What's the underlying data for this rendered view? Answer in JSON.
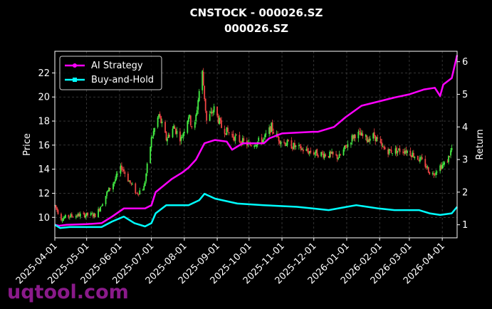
{
  "title": "CNSTOCK - 000026.SZ",
  "subtitle": "000026.SZ",
  "watermark": "uqtool.com",
  "chart_data": {
    "type": "line",
    "xlabel": "",
    "ylabel_left": "Price",
    "ylabel_right": "Return",
    "x_range": [
      "2025-04-01",
      "2026-04-15"
    ],
    "y_left_range": [
      8.3,
      23.8
    ],
    "y_right_range": [
      0.6,
      6.32
    ],
    "x_ticks": [
      "2025-04-01",
      "2025-05-01",
      "2025-06-01",
      "2025-07-01",
      "2025-08-01",
      "2025-09-01",
      "2025-10-01",
      "2025-11-01",
      "2025-12-01",
      "2026-01-01",
      "2026-02-01",
      "2026-03-01",
      "2026-04-01"
    ],
    "y_left_ticks": [
      "10",
      "12",
      "14",
      "16",
      "18",
      "20",
      "22"
    ],
    "y_right_ticks": [
      "1",
      "2",
      "3",
      "4",
      "5",
      "6"
    ],
    "grid": true,
    "legend_position": "top-left",
    "candle_colors": {
      "up": "#44ee44",
      "down": "#ee4444"
    },
    "price_path": [
      [
        "2025-04-01",
        11.0
      ],
      [
        "2025-04-07",
        9.9
      ],
      [
        "2025-04-15",
        10.1
      ],
      [
        "2025-04-25",
        10.2
      ],
      [
        "2025-05-10",
        10.2
      ],
      [
        "2025-05-20",
        12.0
      ],
      [
        "2025-05-27",
        13.0
      ],
      [
        "2025-06-03",
        14.2
      ],
      [
        "2025-06-10",
        13.0
      ],
      [
        "2025-06-17",
        12.0
      ],
      [
        "2025-06-24",
        12.5
      ],
      [
        "2025-07-01",
        16.5
      ],
      [
        "2025-07-08",
        18.5
      ],
      [
        "2025-07-15",
        16.5
      ],
      [
        "2025-07-22",
        17.5
      ],
      [
        "2025-07-29",
        16.5
      ],
      [
        "2025-08-05",
        18.5
      ],
      [
        "2025-08-10",
        17.0
      ],
      [
        "2025-08-15",
        20.5
      ],
      [
        "2025-08-18",
        22.0
      ],
      [
        "2025-08-22",
        18.0
      ],
      [
        "2025-08-29",
        19.0
      ],
      [
        "2025-09-05",
        17.5
      ],
      [
        "2025-09-12",
        17.0
      ],
      [
        "2025-09-20",
        16.5
      ],
      [
        "2025-10-01",
        16.0
      ],
      [
        "2025-10-15",
        16.5
      ],
      [
        "2025-10-22",
        17.5
      ],
      [
        "2025-10-26",
        16.8
      ],
      [
        "2025-11-01",
        16.3
      ],
      [
        "2025-11-15",
        15.8
      ],
      [
        "2025-11-25",
        15.5
      ],
      [
        "2025-12-05",
        15.3
      ],
      [
        "2025-12-15",
        15.2
      ],
      [
        "2025-12-25",
        15.0
      ],
      [
        "2026-01-05",
        16.5
      ],
      [
        "2026-01-10",
        17.0
      ],
      [
        "2026-01-20",
        16.5
      ],
      [
        "2026-01-27",
        16.8
      ],
      [
        "2026-02-03",
        15.8
      ],
      [
        "2026-02-10",
        15.5
      ],
      [
        "2026-02-25",
        15.6
      ],
      [
        "2026-03-05",
        15.2
      ],
      [
        "2026-03-15",
        14.5
      ],
      [
        "2026-03-22",
        13.5
      ],
      [
        "2026-03-29",
        14.2
      ],
      [
        "2026-04-05",
        14.5
      ],
      [
        "2026-04-12",
        16.2
      ]
    ],
    "series": [
      {
        "name": "AI Strategy",
        "color": "#ff00ff",
        "points": [
          [
            "2025-04-01",
            1.0
          ],
          [
            "2025-04-05",
            0.97
          ],
          [
            "2025-04-12",
            1.0
          ],
          [
            "2025-05-01",
            1.02
          ],
          [
            "2025-05-15",
            1.05
          ],
          [
            "2025-05-25",
            1.25
          ],
          [
            "2025-06-05",
            1.5
          ],
          [
            "2025-06-25",
            1.5
          ],
          [
            "2025-07-01",
            1.6
          ],
          [
            "2025-07-05",
            2.0
          ],
          [
            "2025-07-20",
            2.4
          ],
          [
            "2025-07-30",
            2.6
          ],
          [
            "2025-08-05",
            2.75
          ],
          [
            "2025-08-12",
            3.0
          ],
          [
            "2025-08-20",
            3.5
          ],
          [
            "2025-08-30",
            3.6
          ],
          [
            "2025-09-10",
            3.55
          ],
          [
            "2025-09-15",
            3.3
          ],
          [
            "2025-09-25",
            3.5
          ],
          [
            "2025-10-15",
            3.5
          ],
          [
            "2025-10-20",
            3.65
          ],
          [
            "2025-11-01",
            3.8
          ],
          [
            "2025-11-30",
            3.85
          ],
          [
            "2025-12-05",
            3.85
          ],
          [
            "2025-12-20",
            4.0
          ],
          [
            "2025-12-31",
            4.3
          ],
          [
            "2026-01-15",
            4.65
          ],
          [
            "2026-02-15",
            4.9
          ],
          [
            "2026-03-01",
            5.0
          ],
          [
            "2026-03-15",
            5.15
          ],
          [
            "2026-03-25",
            5.2
          ],
          [
            "2026-03-30",
            4.95
          ],
          [
            "2026-04-02",
            5.3
          ],
          [
            "2026-04-10",
            5.5
          ],
          [
            "2026-04-15",
            6.2
          ]
        ]
      },
      {
        "name": "Buy-and-Hold",
        "color": "#00ffff",
        "points": [
          [
            "2025-04-01",
            1.0
          ],
          [
            "2025-04-06",
            0.9
          ],
          [
            "2025-04-15",
            0.93
          ],
          [
            "2025-05-15",
            0.93
          ],
          [
            "2025-05-25",
            1.1
          ],
          [
            "2025-06-05",
            1.25
          ],
          [
            "2025-06-15",
            1.05
          ],
          [
            "2025-06-25",
            0.95
          ],
          [
            "2025-07-01",
            1.05
          ],
          [
            "2025-07-05",
            1.35
          ],
          [
            "2025-07-15",
            1.6
          ],
          [
            "2025-08-05",
            1.6
          ],
          [
            "2025-08-15",
            1.75
          ],
          [
            "2025-08-20",
            1.95
          ],
          [
            "2025-08-30",
            1.8
          ],
          [
            "2025-09-20",
            1.65
          ],
          [
            "2025-10-15",
            1.6
          ],
          [
            "2025-11-15",
            1.55
          ],
          [
            "2025-11-30",
            1.5
          ],
          [
            "2025-12-15",
            1.45
          ],
          [
            "2026-01-01",
            1.55
          ],
          [
            "2026-01-10",
            1.6
          ],
          [
            "2026-01-31",
            1.5
          ],
          [
            "2026-02-15",
            1.45
          ],
          [
            "2026-03-10",
            1.45
          ],
          [
            "2026-03-20",
            1.35
          ],
          [
            "2026-03-30",
            1.3
          ],
          [
            "2026-04-10",
            1.35
          ],
          [
            "2026-04-15",
            1.55
          ]
        ]
      }
    ]
  }
}
